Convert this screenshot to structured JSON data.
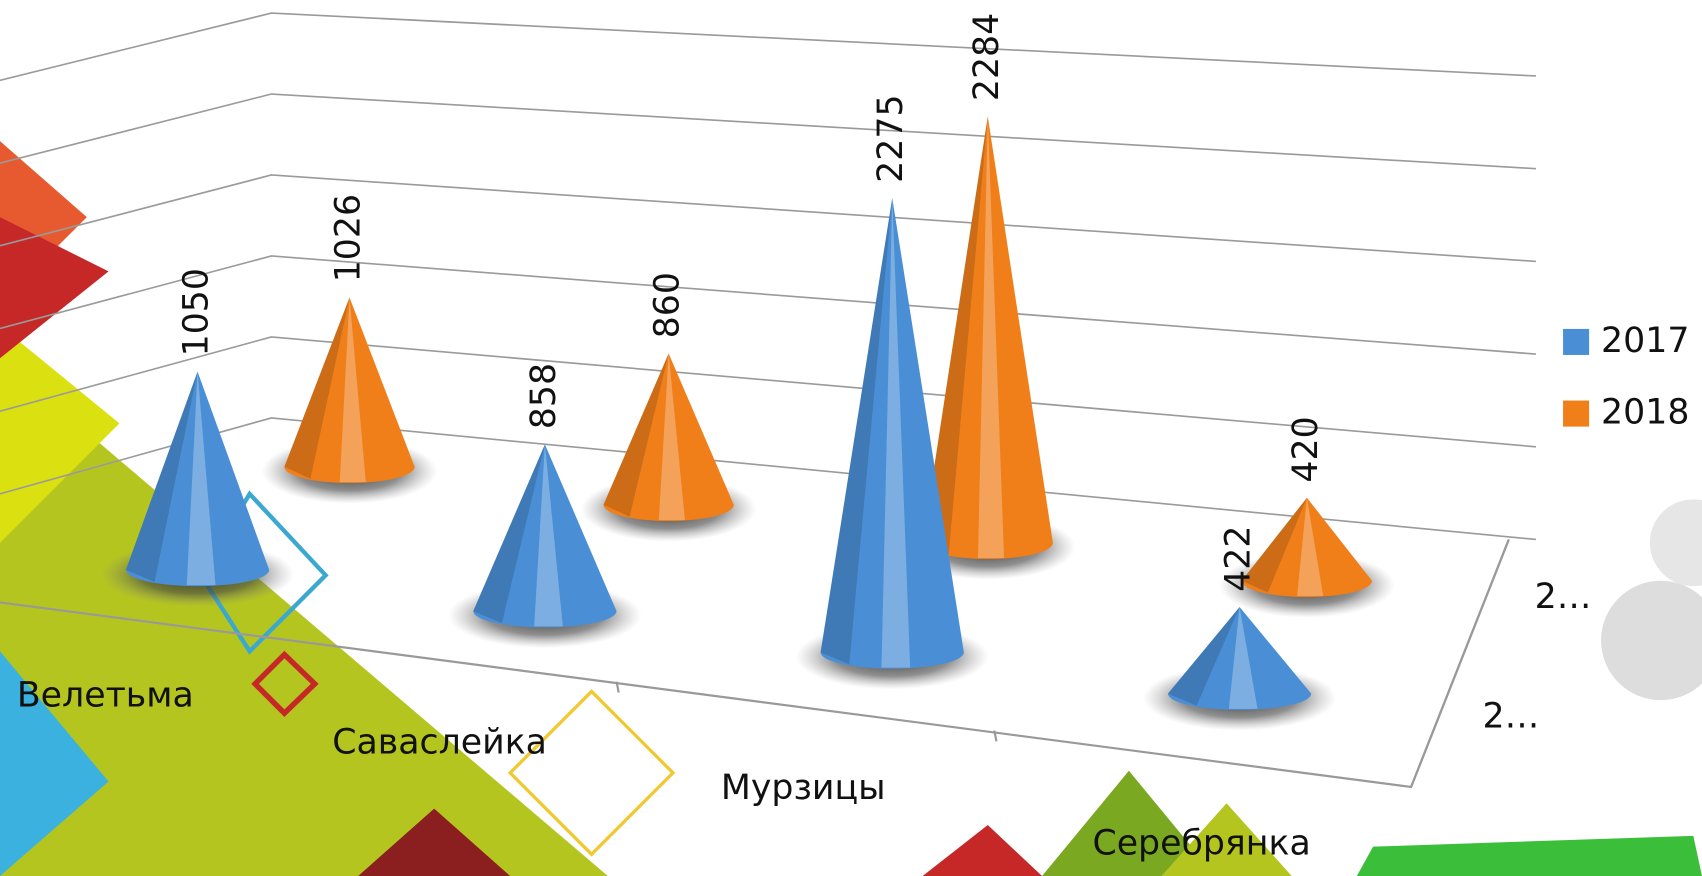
{
  "chart_data": {
    "type": "cone3d",
    "categories": [
      "Велетьма",
      "Саваслейка",
      "Мурзицы",
      "Серебрянка"
    ],
    "series": [
      {
        "name": "2017",
        "color": "#4a8fd6",
        "values": [
          1050,
          858,
          2275,
          422
        ]
      },
      {
        "name": "2018",
        "color": "#f07f1a",
        "values": [
          1026,
          860,
          2284,
          420
        ]
      }
    ],
    "depth_labels": [
      "2…",
      "2…"
    ],
    "ylim": [
      0,
      2500
    ],
    "yticks": [
      0,
      500,
      1000,
      1500,
      2000,
      2500
    ],
    "grid": true,
    "legend": "right"
  }
}
